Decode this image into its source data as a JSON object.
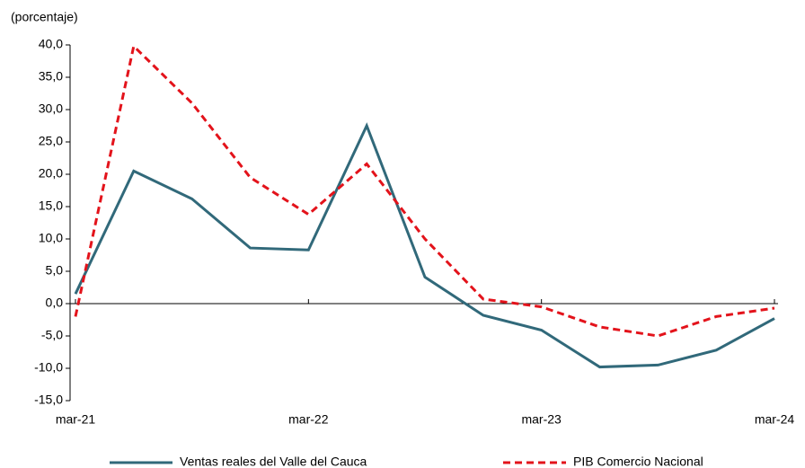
{
  "chart_data": {
    "type": "line",
    "y_label": "(porcentaje)",
    "categories": [
      "mar-21",
      null,
      null,
      null,
      "mar-22",
      null,
      null,
      null,
      "mar-23",
      null,
      null,
      null,
      "mar-24"
    ],
    "series": [
      {
        "name": "Ventas reales del Valle del Cauca",
        "color": "#31697a",
        "dash": "solid",
        "values": [
          1.5,
          20.5,
          16.2,
          8.6,
          8.3,
          27.5,
          4.1,
          -1.8,
          -4.1,
          -9.8,
          -9.5,
          -7.2,
          -2.3
        ]
      },
      {
        "name": "PIB Comercio Nacional",
        "color": "#e3131b",
        "dash": "dashed",
        "values": [
          -2.0,
          39.8,
          31.0,
          19.5,
          13.8,
          21.6,
          10.0,
          0.7,
          -0.5,
          -3.6,
          -5.0,
          -2.0,
          -0.7
        ]
      }
    ],
    "ylim": [
      -15,
      40
    ],
    "yticks": [
      {
        "value": -15,
        "label": "-15,0"
      },
      {
        "value": -10,
        "label": "-10,0"
      },
      {
        "value": -5,
        "label": "-5,0"
      },
      {
        "value": 0,
        "label": "0,0"
      },
      {
        "value": 5,
        "label": "5,0"
      },
      {
        "value": 10,
        "label": "10,0"
      },
      {
        "value": 15,
        "label": "15,0"
      },
      {
        "value": 20,
        "label": "20,0"
      },
      {
        "value": 25,
        "label": "25,0"
      },
      {
        "value": 30,
        "label": "30,0"
      },
      {
        "value": 35,
        "label": "35,0"
      },
      {
        "value": 40,
        "label": "40,0"
      }
    ]
  }
}
